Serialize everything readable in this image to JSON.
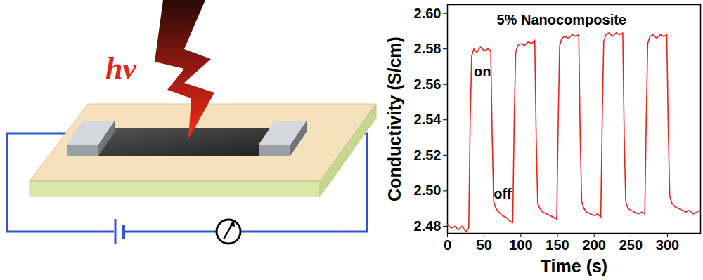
{
  "chart_data": {
    "type": "line",
    "title": "5% Nanocomposite",
    "x_label": "Time (s)",
    "y_label": "Conductivity (S/cm)",
    "color": "#e8231c",
    "x": [
      0,
      5,
      10,
      15,
      20,
      25,
      29,
      31,
      33,
      36,
      40,
      45,
      50,
      55,
      59,
      61,
      63,
      66,
      70,
      75,
      80,
      85,
      89,
      91,
      93,
      96,
      100,
      105,
      110,
      115,
      119,
      121,
      123,
      126,
      130,
      135,
      140,
      145,
      149,
      151,
      153,
      156,
      160,
      165,
      170,
      175,
      179,
      181,
      183,
      186,
      190,
      195,
      200,
      205,
      209,
      211,
      213,
      216,
      220,
      225,
      230,
      235,
      239,
      241,
      243,
      246,
      250,
      255,
      260,
      265,
      269,
      271,
      273,
      276,
      280,
      285,
      290,
      295,
      299,
      301,
      303,
      306,
      310,
      315,
      320,
      325,
      330,
      335,
      340,
      344
    ],
    "values": [
      2.481,
      2.479,
      2.48,
      2.478,
      2.48,
      2.477,
      2.479,
      2.54,
      2.576,
      2.58,
      2.578,
      2.581,
      2.579,
      2.58,
      2.579,
      2.53,
      2.494,
      2.49,
      2.488,
      2.486,
      2.485,
      2.483,
      2.482,
      2.54,
      2.578,
      2.582,
      2.583,
      2.582,
      2.584,
      2.583,
      2.585,
      2.53,
      2.493,
      2.49,
      2.488,
      2.487,
      2.486,
      2.485,
      2.484,
      2.54,
      2.582,
      2.586,
      2.587,
      2.586,
      2.588,
      2.587,
      2.588,
      2.53,
      2.494,
      2.49,
      2.488,
      2.487,
      2.486,
      2.487,
      2.485,
      2.54,
      2.584,
      2.588,
      2.589,
      2.587,
      2.589,
      2.588,
      2.589,
      2.53,
      2.494,
      2.49,
      2.489,
      2.488,
      2.487,
      2.488,
      2.487,
      2.54,
      2.583,
      2.587,
      2.588,
      2.586,
      2.588,
      2.587,
      2.588,
      2.535,
      2.497,
      2.493,
      2.491,
      2.49,
      2.489,
      2.488,
      2.489,
      2.487,
      2.488,
      2.489
    ],
    "xlim": [
      0,
      345
    ],
    "xticks": [
      0,
      50,
      100,
      150,
      200,
      250,
      300
    ],
    "ylim": [
      2.476,
      2.605
    ],
    "yticks": [
      2.48,
      {
        "value": 2.5,
        "label": "2.50"
      },
      2.52,
      2.54,
      2.56,
      2.58,
      {
        "value": 2.6,
        "label": "2.60"
      }
    ],
    "annotations": [
      {
        "text": "on",
        "x": 36,
        "y": 2.567
      },
      {
        "text": "off",
        "x": 63,
        "y": 2.498
      }
    ]
  },
  "diagram": {
    "label": "hv"
  }
}
